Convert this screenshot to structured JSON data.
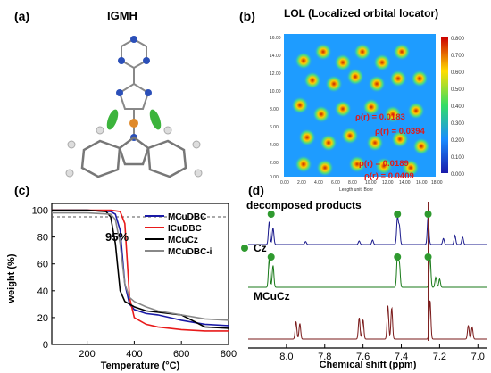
{
  "panels": {
    "a": {
      "label": "(a)",
      "title": "IGMH"
    },
    "b": {
      "label": "(b)",
      "title": "LOL (Localized orbital locator)",
      "xlabel": "Length unit: Bohr",
      "colorbar_ticks": [
        "0.800",
        "0.700",
        "0.600",
        "0.500",
        "0.400",
        "0.300",
        "0.200",
        "0.100",
        "0.000"
      ],
      "x_ticks": [
        "0.00",
        "2.00",
        "4.00",
        "6.00",
        "8.00",
        "10.00",
        "12.00",
        "14.00",
        "16.00",
        "18.00"
      ],
      "y_ticks": [
        "16.00",
        "14.00",
        "12.00",
        "10.00",
        "8.00",
        "6.00",
        "4.00",
        "2.00",
        "0.00"
      ],
      "annotations": [
        "ρ(r) = 0.0183",
        "ρ(r) = 0.0394",
        "ρ(r) = 0.0189",
        "ρ(r) = 0.0409"
      ]
    },
    "c": {
      "label": "(c)",
      "annotation": "95%"
    },
    "d": {
      "label": "(d)"
    }
  },
  "chart_data": [
    {
      "type": "line",
      "xlabel": "Temperature (°C)",
      "ylabel": "weight (%)",
      "xlim": [
        50,
        800
      ],
      "ylim": [
        0,
        105
      ],
      "x_ticks": [
        200,
        400,
        600,
        800
      ],
      "y_ticks": [
        0,
        20,
        40,
        60,
        80,
        100
      ],
      "reference_line": 95,
      "series": [
        {
          "name": "MCuDBC",
          "color": "#1a1aa6",
          "x": [
            50,
            200,
            300,
            320,
            340,
            360,
            380,
            400,
            450,
            500,
            550,
            600,
            700,
            800
          ],
          "y": [
            100,
            100,
            99,
            97,
            85,
            45,
            30,
            26,
            23,
            22,
            20,
            18,
            15,
            14
          ]
        },
        {
          "name": "ICuDBC",
          "color": "#e81a1a",
          "x": [
            50,
            200,
            300,
            340,
            360,
            380,
            400,
            420,
            450,
            500,
            600,
            700,
            800
          ],
          "y": [
            100,
            100,
            100,
            99,
            90,
            35,
            20,
            18,
            15,
            13,
            11,
            10,
            10
          ]
        },
        {
          "name": "MCuCz",
          "color": "#000000",
          "x": [
            50,
            200,
            280,
            300,
            320,
            340,
            360,
            380,
            400,
            450,
            500,
            600,
            700,
            800
          ],
          "y": [
            100,
            100,
            99,
            95,
            75,
            40,
            32,
            30,
            28,
            25,
            24,
            22,
            13,
            12
          ]
        },
        {
          "name": "MCuDBC-i",
          "color": "#888888",
          "x": [
            50,
            200,
            300,
            320,
            340,
            360,
            380,
            400,
            450,
            500,
            600,
            700,
            800
          ],
          "y": [
            98,
            98,
            97,
            93,
            75,
            45,
            35,
            32,
            28,
            25,
            22,
            19,
            18
          ]
        }
      ]
    },
    {
      "type": "line",
      "xlabel": "Chemical shift (ppm)",
      "xlim": [
        8.2,
        6.95
      ],
      "x_ticks": [
        "8.0",
        "7.8",
        "7.6",
        "7.4",
        "7.2",
        "7.0"
      ],
      "series": [
        {
          "name": "decomposed products",
          "color": "#1a1a8c",
          "peaks": [
            [
              8.09,
              0.75
            ],
            [
              8.07,
              0.55
            ],
            [
              7.42,
              0.9
            ],
            [
              7.41,
              0.6
            ],
            [
              7.26,
              0.95
            ],
            [
              7.18,
              0.2
            ],
            [
              7.12,
              0.3
            ],
            [
              7.08,
              0.25
            ],
            [
              7.55,
              0.15
            ],
            [
              7.62,
              0.12
            ],
            [
              7.9,
              0.1
            ]
          ]
        },
        {
          "name": "Cz",
          "color": "#1a7a1a",
          "peaks": [
            [
              8.09,
              0.85
            ],
            [
              8.07,
              0.65
            ],
            [
              7.42,
              0.95
            ],
            [
              7.41,
              0.7
            ],
            [
              7.25,
              0.95
            ],
            [
              7.22,
              0.3
            ],
            [
              7.2,
              0.25
            ]
          ]
        },
        {
          "name": "MCuCz",
          "color": "#7a1a1a",
          "peaks": [
            [
              7.95,
              0.45
            ],
            [
              7.93,
              0.4
            ],
            [
              7.62,
              0.55
            ],
            [
              7.6,
              0.5
            ],
            [
              7.47,
              0.85
            ],
            [
              7.45,
              0.8
            ],
            [
              7.25,
              1.0
            ],
            [
              7.05,
              0.35
            ],
            [
              7.03,
              0.3
            ]
          ]
        }
      ]
    }
  ]
}
